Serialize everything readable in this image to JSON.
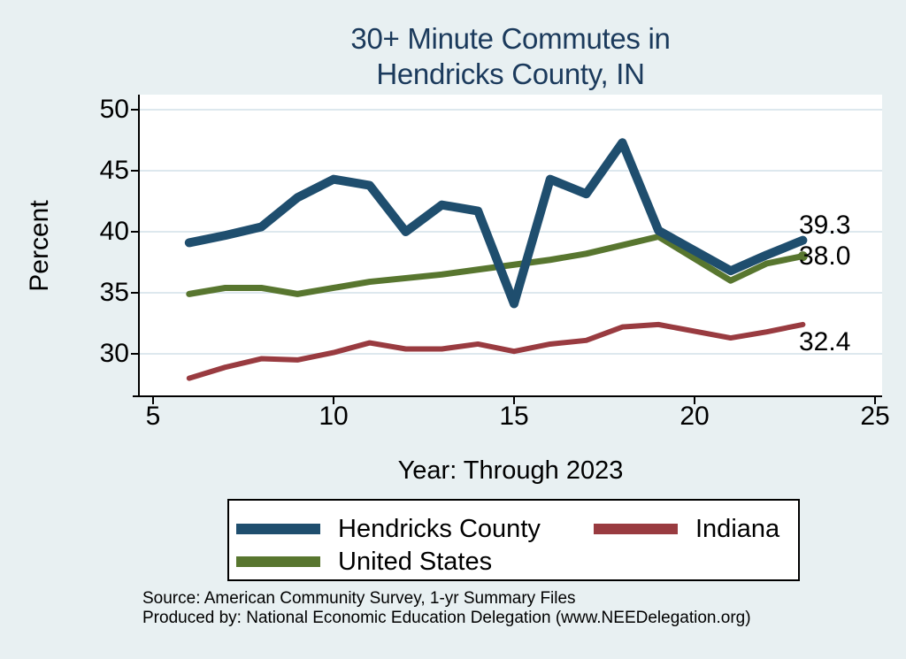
{
  "title": {
    "line1": "30+ Minute Commutes in",
    "line2": "Hendricks County, IN"
  },
  "axes": {
    "y_label": "Percent",
    "x_caption": "Year: Through 2023",
    "x_ticks": [
      5,
      10,
      15,
      20,
      25
    ],
    "y_ticks": [
      50,
      45,
      40,
      35,
      30
    ]
  },
  "chart_data": {
    "type": "line",
    "title": "30+ Minute Commutes in Hendricks County, IN",
    "xlabel": "Year: Through 2023",
    "ylabel": "Percent",
    "xlim": [
      5,
      25
    ],
    "ylim": [
      26.5,
      51.5
    ],
    "grid": "horizontal",
    "legend_position": "bottom",
    "x": [
      6,
      7,
      8,
      9,
      10,
      11,
      12,
      13,
      14,
      15,
      16,
      17,
      18,
      19,
      21,
      22,
      23
    ],
    "x_axis_note": "x values are calendar years 2006-2023 plotted as 6-23; no point for 20",
    "series": [
      {
        "name": "Hendricks County",
        "color": "#1f4e6e",
        "line_width": 10,
        "end_label": "39.3",
        "end_marker": false,
        "values": [
          39.1,
          39.7,
          40.4,
          42.8,
          44.3,
          43.8,
          40.0,
          42.2,
          41.7,
          34.1,
          44.3,
          43.1,
          47.3,
          40.1,
          36.8,
          38.1,
          39.3
        ]
      },
      {
        "name": "Indiana",
        "color": "#993b40",
        "line_width": 6,
        "end_label": "32.4",
        "end_marker": false,
        "values": [
          28.0,
          28.9,
          29.6,
          29.5,
          30.1,
          30.9,
          30.4,
          30.4,
          30.8,
          30.2,
          30.8,
          31.1,
          32.2,
          32.4,
          31.3,
          31.8,
          32.4
        ]
      },
      {
        "name": "United States",
        "color": "#58762f",
        "line_width": 7,
        "end_label": "38.0",
        "end_marker": true,
        "values": [
          34.9,
          35.4,
          35.4,
          34.9,
          35.4,
          35.9,
          36.2,
          36.5,
          36.9,
          37.3,
          37.7,
          38.2,
          38.9,
          39.6,
          36.0,
          37.4,
          38.0
        ]
      }
    ]
  },
  "colors": {
    "page_background": "#e8f0f2",
    "plot_background": "#ffffff",
    "gridline": "#dde8ee",
    "axis": "#000000",
    "title_text": "#1b3a5c",
    "label_text": "#000000"
  },
  "footer": {
    "source": "Source: American Community Survey, 1-yr Summary Files",
    "produced_by": "Produced by: National Economic Education Delegation (www.NEEDelegation.org)"
  }
}
